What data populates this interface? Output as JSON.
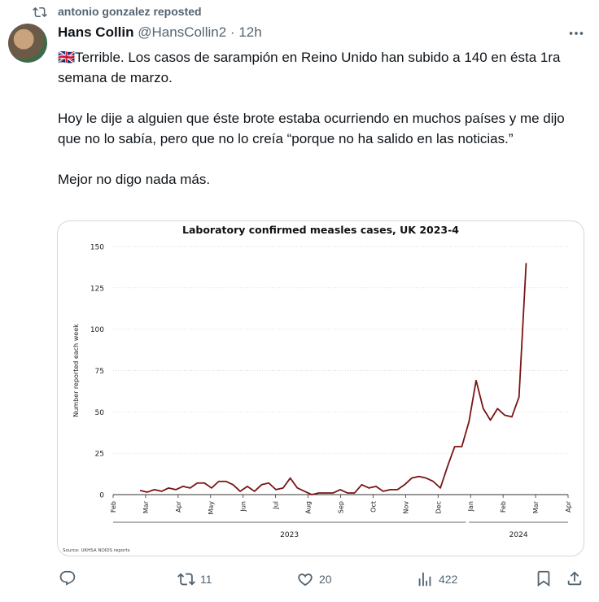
{
  "repost": "antonio gonzalez reposted",
  "author": {
    "name": "Hans Collin",
    "handle": "@HansCollin2",
    "separator": "·",
    "time": "12h"
  },
  "text": [
    "🇬🇧Terrible. Los casos de sarampión en Reino Unido han subido a 140 en ésta 1ra semana de marzo.",
    "Hoy le dije a alguien que éste brote estaba ocurriendo en muchos países y me dijo que no lo sabía, pero que no lo creía “porque no ha salido en las noticias.”",
    "Mejor no digo nada más."
  ],
  "chart_data": {
    "type": "line",
    "title": "Laboratory confirmed measles cases, UK 2023-4",
    "ylabel": "Number reported each week",
    "source": "Source: UKHSA NOIDS reports",
    "color": "#7a1414",
    "grid": true,
    "ylim": [
      0,
      150
    ],
    "yticks": [
      0,
      25,
      50,
      75,
      100,
      125,
      150
    ],
    "xlim": [
      0,
      14
    ],
    "xticks": [
      {
        "value": 0,
        "label": "Feb"
      },
      {
        "value": 1,
        "label": "Mar"
      },
      {
        "value": 2,
        "label": "Apr"
      },
      {
        "value": 3,
        "label": "May"
      },
      {
        "value": 4,
        "label": "Jun"
      },
      {
        "value": 5,
        "label": "Jul"
      },
      {
        "value": 6,
        "label": "Aug"
      },
      {
        "value": 7,
        "label": "Sep"
      },
      {
        "value": 8,
        "label": "Oct"
      },
      {
        "value": 9,
        "label": "Nov"
      },
      {
        "value": 10,
        "label": "Dec"
      },
      {
        "value": 11,
        "label": "Jan"
      },
      {
        "value": 12,
        "label": "Feb"
      },
      {
        "value": 13,
        "label": "Mar"
      },
      {
        "value": 14,
        "label": "Apr"
      }
    ],
    "x_groups": [
      {
        "label": "2023",
        "range": [
          0,
          10.85
        ]
      },
      {
        "label": "2024",
        "range": [
          10.95,
          14
        ]
      }
    ],
    "x": [
      0.83,
      1.05,
      1.27,
      1.49,
      1.71,
      1.93,
      2.15,
      2.37,
      2.59,
      2.81,
      3.03,
      3.25,
      3.47,
      3.69,
      3.91,
      4.13,
      4.35,
      4.57,
      4.79,
      5.01,
      5.23,
      5.45,
      5.67,
      5.89,
      6.11,
      6.33,
      6.55,
      6.77,
      6.99,
      7.21,
      7.43,
      7.65,
      7.87,
      8.09,
      8.31,
      8.53,
      8.75,
      8.97,
      9.19,
      9.41,
      9.63,
      9.85,
      10.07,
      10.29,
      10.51,
      10.73,
      10.95,
      11.17,
      11.39,
      11.61,
      11.83,
      12.05,
      12.27,
      12.49,
      12.71
    ],
    "values": [
      2.5,
      1.5,
      3,
      2,
      4,
      3,
      5,
      4,
      7,
      7,
      4,
      8,
      8,
      6,
      2,
      5,
      2,
      6,
      7,
      3,
      4,
      10,
      4,
      2,
      0,
      1,
      1,
      1,
      3,
      1,
      1,
      6,
      4,
      5,
      2,
      3,
      3,
      6,
      10,
      11,
      10,
      8,
      4,
      17,
      29,
      29,
      44,
      69,
      52,
      45,
      52,
      48,
      47,
      59,
      140
    ]
  },
  "actions": {
    "retweets": "11",
    "likes": "20",
    "views": "422"
  }
}
